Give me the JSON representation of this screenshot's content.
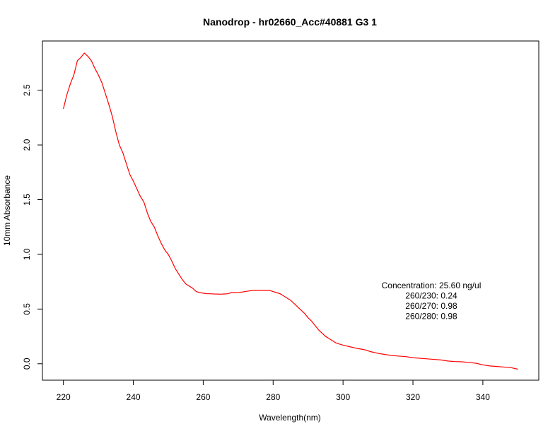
{
  "chart_data": {
    "type": "line",
    "title": "Nanodrop - hr02660_Acc#40881 G3 1",
    "xlabel": "Wavelength(nm)",
    "ylabel": "10mm Absorbance",
    "xlim": [
      214,
      356
    ],
    "ylim": [
      -0.15,
      2.95
    ],
    "x_ticks": [
      220,
      240,
      260,
      280,
      300,
      320,
      340
    ],
    "x_tick_labels": [
      "220",
      "240",
      "260",
      "280",
      "300",
      "320",
      "340"
    ],
    "y_ticks": [
      0.0,
      0.5,
      1.0,
      1.5,
      2.0,
      2.5
    ],
    "y_tick_labels": [
      "0.0",
      "0.5",
      "1.0",
      "1.5",
      "2.0",
      "2.5"
    ],
    "grid": false,
    "series": [
      {
        "color": "#ff0000",
        "x": [
          220,
          221,
          222,
          223,
          224,
          225,
          226,
          227,
          228,
          229,
          230,
          231,
          232,
          233,
          234,
          235,
          236,
          237,
          238,
          239,
          240,
          241,
          242,
          243,
          244,
          245,
          246,
          247,
          248,
          249,
          250,
          251,
          252,
          253,
          254,
          255,
          256,
          257,
          258,
          259,
          260,
          261,
          262,
          263,
          264,
          265,
          266,
          267,
          268,
          269,
          270,
          271,
          272,
          273,
          274,
          275,
          276,
          277,
          278,
          279,
          280,
          281,
          282,
          283,
          284,
          285,
          286,
          287,
          288,
          289,
          290,
          291,
          292,
          293,
          294,
          295,
          296,
          297,
          298,
          299,
          300,
          302,
          304,
          306,
          308,
          310,
          312,
          314,
          316,
          318,
          320,
          322,
          324,
          326,
          328,
          330,
          332,
          334,
          336,
          338,
          340,
          342,
          344,
          346,
          348,
          350
        ],
        "y": [
          2.33,
          2.46,
          2.56,
          2.64,
          2.77,
          2.8,
          2.84,
          2.81,
          2.77,
          2.7,
          2.64,
          2.57,
          2.47,
          2.37,
          2.26,
          2.12,
          2.0,
          1.93,
          1.83,
          1.73,
          1.67,
          1.6,
          1.53,
          1.48,
          1.38,
          1.3,
          1.25,
          1.17,
          1.1,
          1.04,
          1.0,
          0.94,
          0.87,
          0.82,
          0.77,
          0.73,
          0.71,
          0.69,
          0.66,
          0.65,
          0.645,
          0.64,
          0.64,
          0.638,
          0.637,
          0.636,
          0.638,
          0.64,
          0.65,
          0.65,
          0.652,
          0.655,
          0.66,
          0.665,
          0.67,
          0.67,
          0.67,
          0.67,
          0.67,
          0.67,
          0.66,
          0.65,
          0.64,
          0.62,
          0.6,
          0.58,
          0.55,
          0.52,
          0.49,
          0.46,
          0.42,
          0.39,
          0.35,
          0.31,
          0.28,
          0.25,
          0.23,
          0.21,
          0.19,
          0.18,
          0.17,
          0.155,
          0.14,
          0.13,
          0.11,
          0.095,
          0.085,
          0.075,
          0.07,
          0.065,
          0.055,
          0.05,
          0.045,
          0.04,
          0.035,
          0.025,
          0.02,
          0.018,
          0.012,
          0.005,
          -0.01,
          -0.02,
          -0.025,
          -0.03,
          -0.035,
          -0.05
        ]
      }
    ],
    "annotation_lines": [
      "Concentration: 25.60 ng/ul",
      "260/230: 0.24",
      "260/270: 0.98",
      "260/280: 0.98"
    ]
  }
}
